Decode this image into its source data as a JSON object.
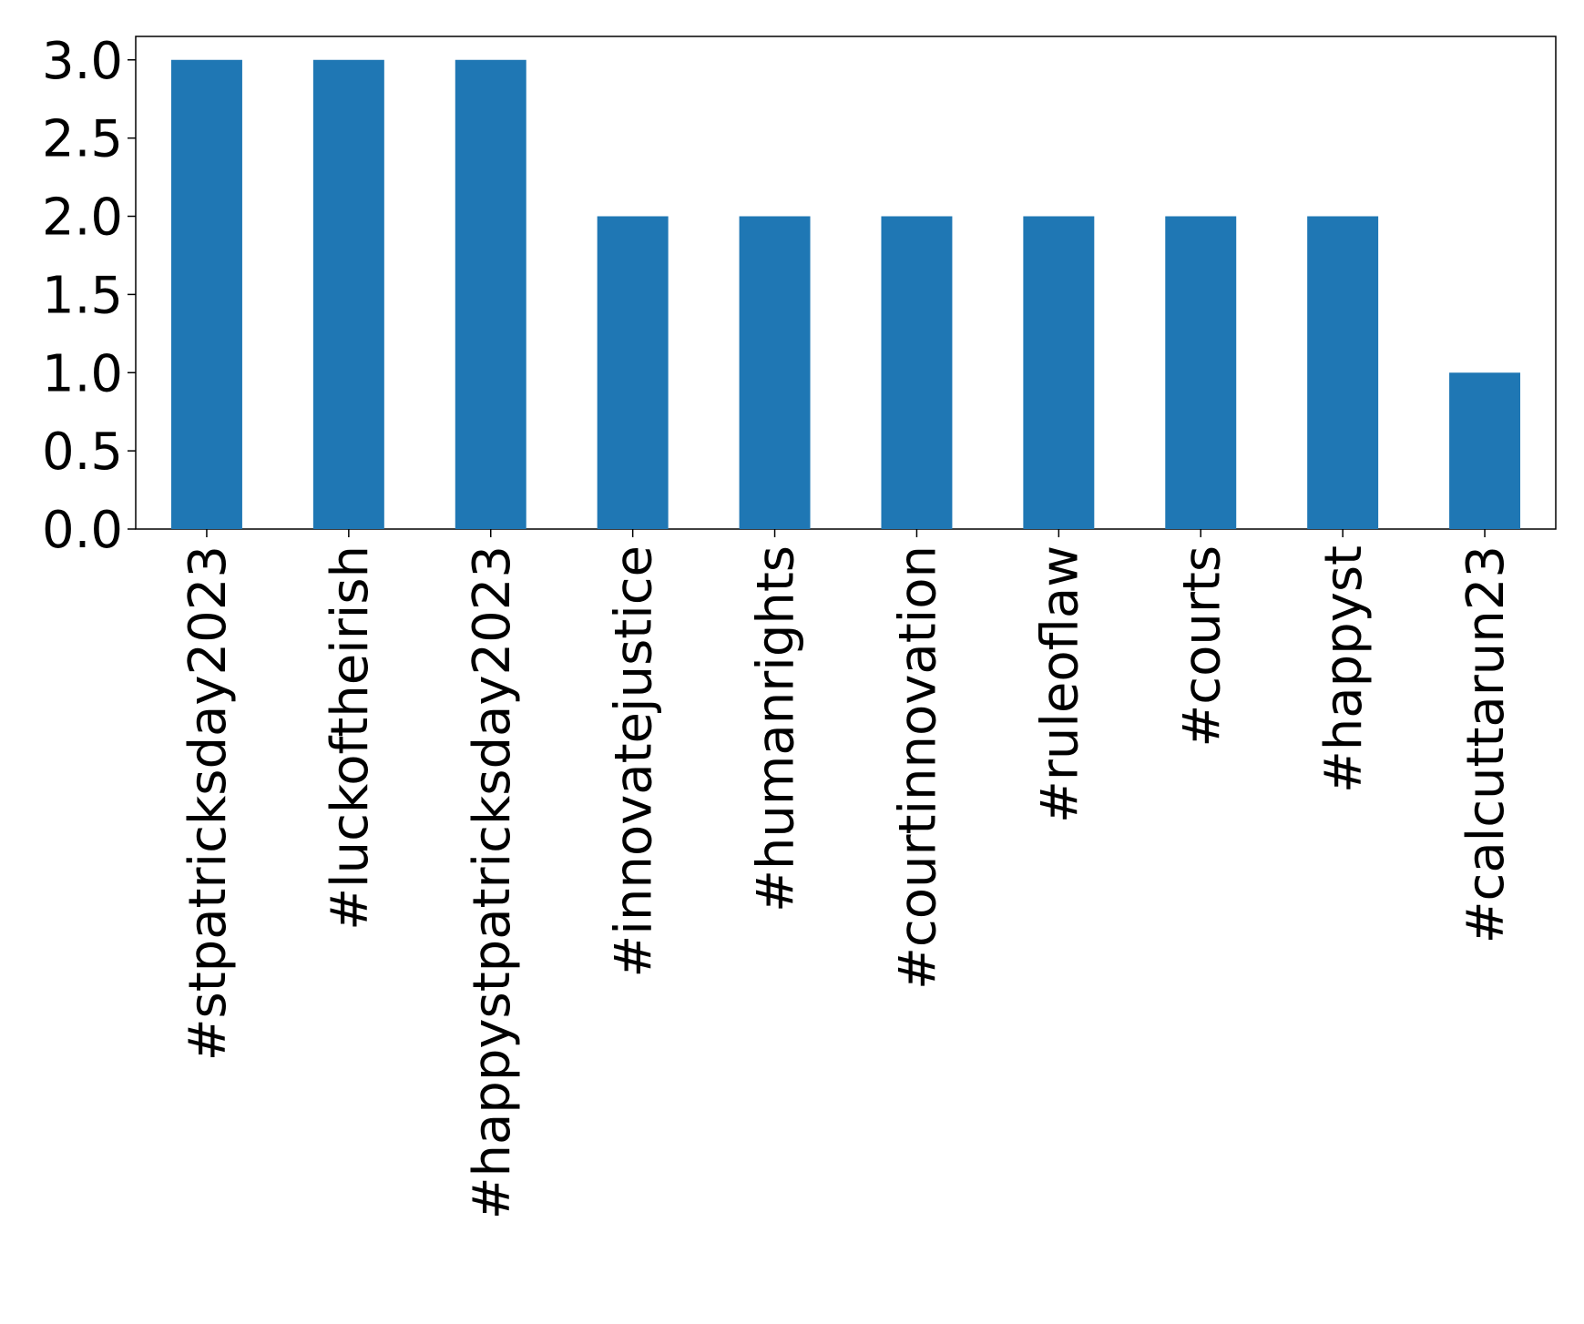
{
  "chart_data": {
    "type": "bar",
    "categories": [
      "#stpatricksday2023",
      "#luckoftheirish",
      "#happystpatricksday2023",
      "#innovatejustice",
      "#humanrights",
      "#courtinnovation",
      "#ruleoflaw",
      "#courts",
      "#happyst",
      "#calcuttarun23"
    ],
    "values": [
      3,
      3,
      3,
      2,
      2,
      2,
      2,
      2,
      2,
      1
    ],
    "color": "#1f77b4",
    "ylim": [
      0,
      3.15
    ],
    "yticks": [
      {
        "value": 0,
        "label": "0.0"
      },
      0.5,
      {
        "value": 1,
        "label": "1.0"
      },
      1.5,
      {
        "value": 2,
        "label": "2.0"
      },
      2.5,
      {
        "value": 3,
        "label": "3.0"
      }
    ],
    "grid": false
  }
}
